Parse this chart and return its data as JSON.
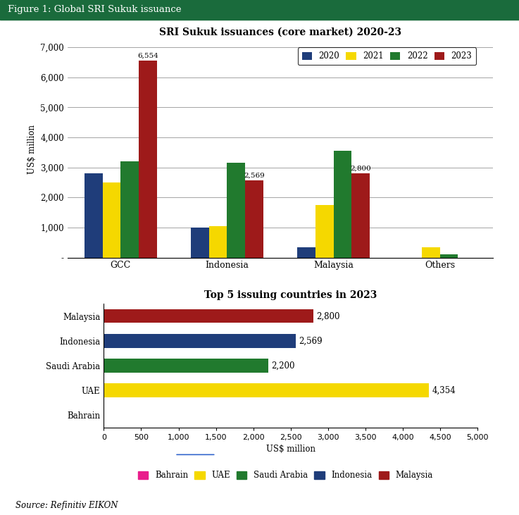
{
  "fig_title": "Figure 1: Global SRI Sukuk issuance",
  "fig_title_bg": "#1a6b3c",
  "fig_title_color": "white",
  "bar_title": "SRI Sukuk issuances (core market) 2020-23",
  "bar_ylabel": "US$ million",
  "bar_categories": [
    "GCC",
    "Indonesia",
    "Malaysia",
    "Others"
  ],
  "bar_years": [
    "2020",
    "2021",
    "2022",
    "2023"
  ],
  "bar_colors": [
    "#1f3d7a",
    "#f5d800",
    "#217a2e",
    "#9e1a1a"
  ],
  "bar_data": {
    "GCC": [
      2800,
      2500,
      3200,
      6554
    ],
    "Indonesia": [
      1000,
      1050,
      3150,
      2569
    ],
    "Malaysia": [
      350,
      1750,
      3550,
      2800
    ],
    "Others": [
      0,
      350,
      100,
      0
    ]
  },
  "bar_annotations": {
    "GCC": [
      null,
      null,
      null,
      "6,554"
    ],
    "Indonesia": [
      null,
      null,
      null,
      "2,569"
    ],
    "Malaysia": [
      null,
      null,
      null,
      "2,800"
    ],
    "Others": [
      null,
      null,
      null,
      null
    ]
  },
  "bar_ylim": [
    0,
    7200
  ],
  "bar_yticks": [
    0,
    1000,
    2000,
    3000,
    4000,
    5000,
    6000,
    7000
  ],
  "bar_ytick_labels": [
    "-",
    "1,000",
    "2,000",
    "3,000",
    "4,000",
    "5,000",
    "6,000",
    "7,000"
  ],
  "horiz_title": "Top 5 issuing countries in 2023",
  "horiz_xlabel": "US$ million",
  "horiz_categories": [
    "Bahrain",
    "UAE",
    "Saudi Arabia",
    "Indonesia",
    "Malaysia"
  ],
  "horiz_values": [
    0,
    4354,
    2200,
    2569,
    2800
  ],
  "horiz_colors": [
    "#e91e8c",
    "#f5d800",
    "#217a2e",
    "#1f3d7a",
    "#9e1a1a"
  ],
  "horiz_annotations": [
    "",
    "4,354",
    "2,200",
    "2,569",
    "2,800"
  ],
  "horiz_xlim": [
    0,
    5000
  ],
  "horiz_xticks": [
    0,
    500,
    1000,
    1500,
    2000,
    2500,
    3000,
    3500,
    4000,
    4500,
    5000
  ],
  "legend1_labels": [
    "2020",
    "2021",
    "2022",
    "2023"
  ],
  "legend2_labels": [
    "Bahrain",
    "UAE",
    "Saudi Arabia",
    "Indonesia",
    "Malaysia"
  ],
  "legend2_colors": [
    "#e91e8c",
    "#f5d800",
    "#217a2e",
    "#1f3d7a",
    "#9e1a1a"
  ],
  "source_text": "Source: Refinitiv EIKON",
  "background_color": "#ffffff"
}
